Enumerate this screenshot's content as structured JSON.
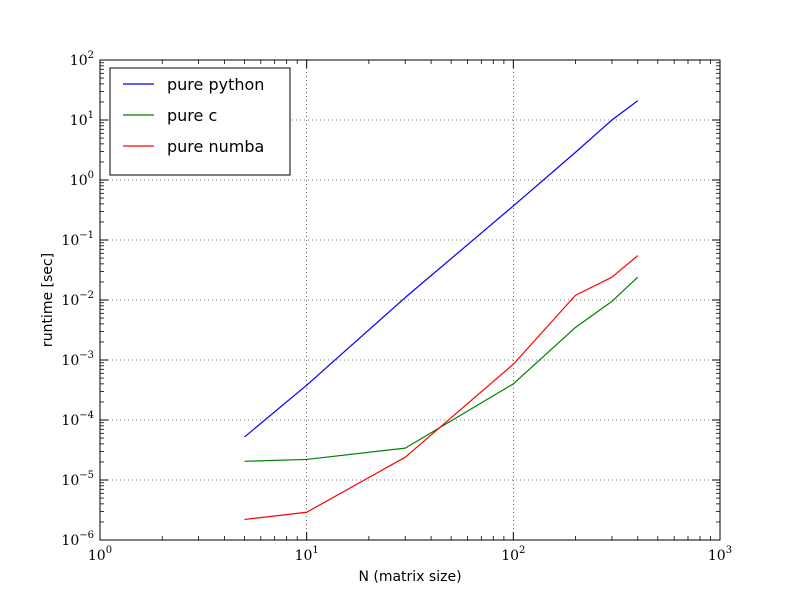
{
  "chart_data": {
    "type": "line",
    "title": "",
    "xlabel": "N (matrix size)",
    "ylabel": "runtime [sec]",
    "xscale": "log",
    "yscale": "log",
    "xlim": [
      1,
      1000
    ],
    "ylim": [
      1e-06,
      100
    ],
    "grid": true,
    "legend_position": "top-left",
    "x_ticks": [
      {
        "base": "10",
        "exp": "0",
        "value": 1
      },
      {
        "base": "10",
        "exp": "1",
        "value": 10
      },
      {
        "base": "10",
        "exp": "2",
        "value": 100
      },
      {
        "base": "10",
        "exp": "3",
        "value": 1000
      }
    ],
    "y_ticks": [
      {
        "base": "10",
        "exp": "−6",
        "value": 1e-06
      },
      {
        "base": "10",
        "exp": "−5",
        "value": 1e-05
      },
      {
        "base": "10",
        "exp": "−4",
        "value": 0.0001
      },
      {
        "base": "10",
        "exp": "−3",
        "value": 0.001
      },
      {
        "base": "10",
        "exp": "−2",
        "value": 0.01
      },
      {
        "base": "10",
        "exp": "−1",
        "value": 0.1
      },
      {
        "base": "10",
        "exp": "0",
        "value": 1
      },
      {
        "base": "10",
        "exp": "1",
        "value": 10
      },
      {
        "base": "10",
        "exp": "2",
        "value": 100
      }
    ],
    "series": [
      {
        "name": "pure python",
        "color": "#0000ff",
        "x": [
          5,
          10,
          30,
          100,
          200,
          300,
          400
        ],
        "y": [
          5.2e-05,
          0.00038,
          0.011,
          0.37,
          2.9,
          10,
          21
        ]
      },
      {
        "name": "pure c",
        "color": "#008000",
        "x": [
          5,
          10,
          30,
          100,
          200,
          300,
          400
        ],
        "y": [
          2.05e-05,
          2.2e-05,
          3.4e-05,
          0.0004,
          0.0035,
          0.0095,
          0.024
        ]
      },
      {
        "name": "pure numba",
        "color": "#ff0000",
        "x": [
          5,
          10,
          30,
          100,
          200,
          300,
          400
        ],
        "y": [
          2.2e-06,
          2.9e-06,
          2.4e-05,
          0.00085,
          0.012,
          0.024,
          0.055
        ]
      }
    ]
  }
}
